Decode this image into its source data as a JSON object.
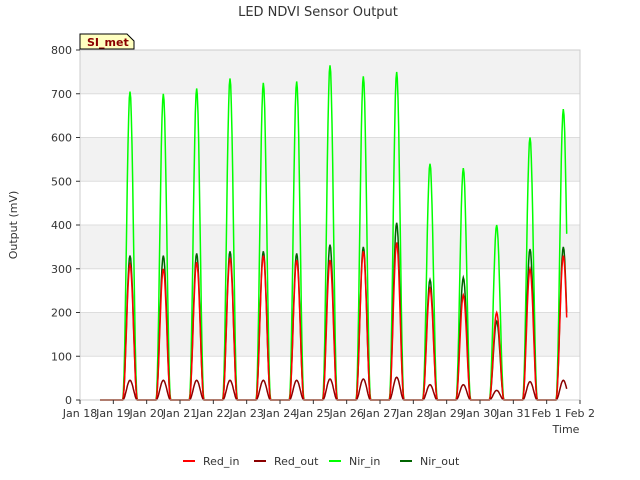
{
  "chart_data": {
    "type": "line",
    "title": "LED NDVI Sensor Output",
    "xlabel": "Time",
    "ylabel": "Output (mV)",
    "ylim": [
      0,
      800
    ],
    "yticks": [
      0,
      100,
      200,
      300,
      400,
      500,
      600,
      700,
      800
    ],
    "xlim_days": [
      0,
      15
    ],
    "xtick_labels": [
      "Jan 18",
      "Jan 19",
      "Jan 20",
      "Jan 21",
      "Jan 22",
      "Jan 23",
      "Jan 24",
      "Jan 25",
      "Jan 26",
      "Jan 27",
      "Jan 28",
      "Jan 29",
      "Jan 30",
      "Jan 31",
      "Feb 1",
      "Feb 2"
    ],
    "grid": true,
    "legend_position": "bottom",
    "site_label": "SI_met",
    "day_offset_of_first_peak": 1,
    "series": [
      {
        "name": "Red_in",
        "color": "#ff0000",
        "daily_peaks": [
          310,
          300,
          315,
          325,
          330,
          320,
          320,
          340,
          360,
          255,
          240,
          200,
          300,
          330
        ]
      },
      {
        "name": "Red_out",
        "color": "#8b0000",
        "daily_peaks": [
          45,
          45,
          45,
          45,
          45,
          45,
          48,
          48,
          52,
          35,
          35,
          22,
          42,
          45
        ]
      },
      {
        "name": "Nir_in",
        "color": "#00ff00",
        "daily_peaks": [
          705,
          700,
          712,
          735,
          725,
          728,
          765,
          740,
          750,
          540,
          530,
          400,
          600,
          665
        ]
      },
      {
        "name": "Nir_out",
        "color": "#006400",
        "daily_peaks": [
          330,
          330,
          335,
          340,
          340,
          335,
          355,
          350,
          405,
          275,
          280,
          180,
          345,
          350
        ]
      }
    ]
  }
}
